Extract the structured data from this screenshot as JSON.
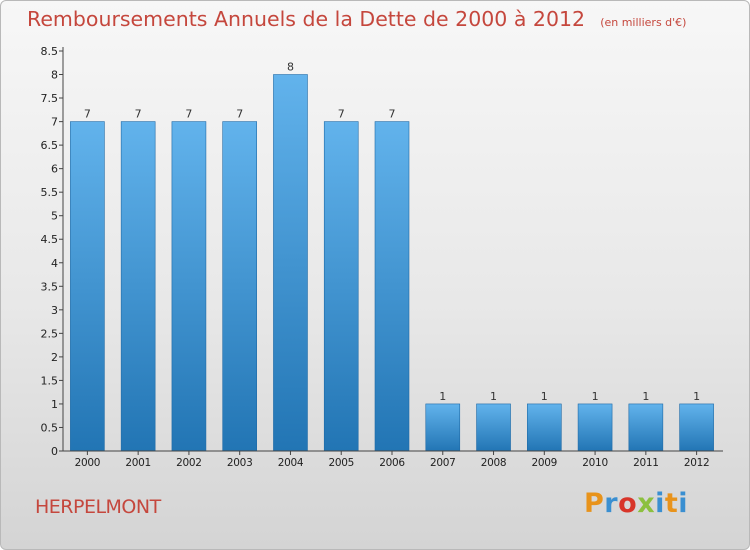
{
  "header": {
    "title": "Remboursements Annuels de la Dette de 2000 à 2012",
    "unit": "(en milliers d'€)"
  },
  "footer": {
    "commune": "HERPELMONT",
    "brand": "Proxiti",
    "brand_colors": [
      "#e8931b",
      "#3a8fd1",
      "#d8352a",
      "#8cc03f",
      "#3a8fd1",
      "#e8931b",
      "#3a8fd1"
    ]
  },
  "colors": {
    "title": "#c5473d",
    "bar_top": "#62b3ec",
    "bar_bottom": "#2275b4",
    "bar_edge": "#1f6aa6",
    "axis": "#444444",
    "tick_text": "#222222"
  },
  "chart_data": {
    "type": "bar",
    "categories": [
      "2000",
      "2001",
      "2002",
      "2003",
      "2004",
      "2005",
      "2006",
      "2007",
      "2008",
      "2009",
      "2010",
      "2011",
      "2012"
    ],
    "values": [
      7,
      7,
      7,
      7,
      8,
      7,
      7,
      1,
      1,
      1,
      1,
      1,
      1
    ],
    "data_labels": [
      "7",
      "7",
      "7",
      "7",
      "8",
      "7",
      "7",
      "1",
      "1",
      "1",
      "1",
      "1",
      "1"
    ],
    "yticks": [
      "0",
      "0.5",
      "1",
      "1.5",
      "2",
      "2.5",
      "3",
      "3.5",
      "4",
      "4.5",
      "5",
      "5.5",
      "6",
      "6.5",
      "7",
      "7.5",
      "8",
      "8.5"
    ],
    "ylim": [
      0,
      8.5
    ],
    "grid": false,
    "legend": "none"
  }
}
